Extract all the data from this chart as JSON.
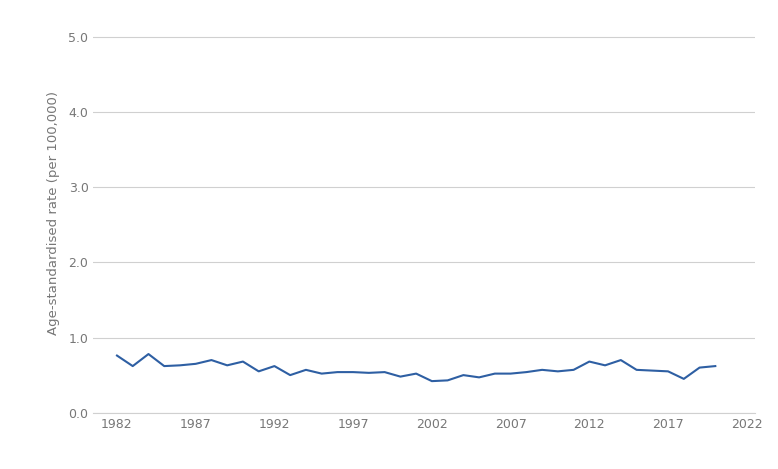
{
  "years": [
    1982,
    1983,
    1984,
    1985,
    1986,
    1987,
    1988,
    1989,
    1990,
    1991,
    1992,
    1993,
    1994,
    1995,
    1996,
    1997,
    1998,
    1999,
    2000,
    2001,
    2002,
    2003,
    2004,
    2005,
    2006,
    2007,
    2008,
    2009,
    2010,
    2011,
    2012,
    2013,
    2014,
    2015,
    2016,
    2017,
    2018,
    2019,
    2020
  ],
  "values": [
    0.76,
    0.62,
    0.78,
    0.62,
    0.63,
    0.65,
    0.7,
    0.63,
    0.68,
    0.55,
    0.62,
    0.5,
    0.57,
    0.52,
    0.54,
    0.54,
    0.53,
    0.54,
    0.48,
    0.52,
    0.42,
    0.43,
    0.5,
    0.47,
    0.52,
    0.52,
    0.54,
    0.57,
    0.55,
    0.57,
    0.68,
    0.63,
    0.7,
    0.57,
    0.56,
    0.55,
    0.45,
    0.6,
    0.62
  ],
  "line_color": "#2E5FA3",
  "line_width": 1.5,
  "ylabel": "Age-standardised rate (per 100,000)",
  "ylabel_fontsize": 9.5,
  "yticks": [
    0.0,
    1.0,
    2.0,
    3.0,
    4.0,
    5.0
  ],
  "ytick_labels": [
    "0.0",
    "1.0",
    "2.0",
    "3.0",
    "4.0",
    "5.0"
  ],
  "ylim": [
    0.0,
    5.3
  ],
  "xticks": [
    1982,
    1987,
    1992,
    1997,
    2002,
    2007,
    2012,
    2017,
    2022
  ],
  "xlim": [
    1980.5,
    2022.5
  ],
  "background_color": "#ffffff",
  "grid_color": "#d0d0d0",
  "tick_fontsize": 9,
  "tick_color": "#777777"
}
